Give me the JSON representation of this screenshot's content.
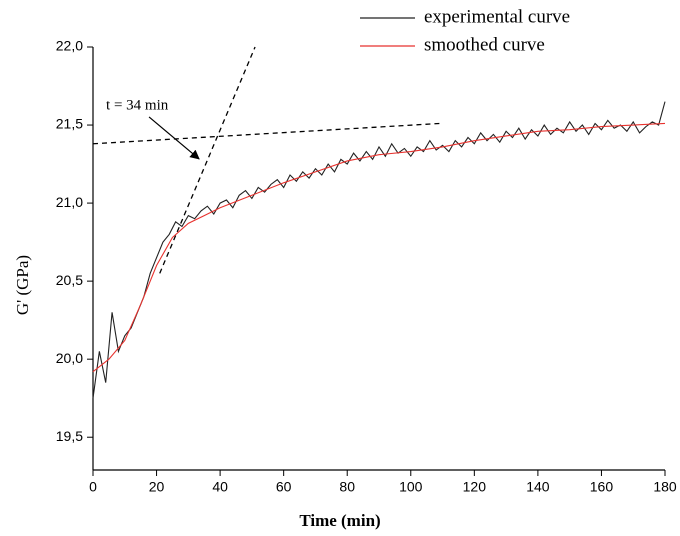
{
  "chart_data": {
    "type": "line",
    "xlabel": "Time (min)",
    "ylabel": "G' (GPa)",
    "xlim": [
      0,
      180
    ],
    "xticks": [
      0,
      20,
      40,
      60,
      80,
      100,
      120,
      140,
      160,
      180
    ],
    "ylim": [
      19.29,
      22.0
    ],
    "yticks": [
      {
        "value": 19.5,
        "label": "19,5"
      },
      {
        "value": 20.0,
        "label": "20,0"
      },
      {
        "value": 20.5,
        "label": "20,5"
      },
      {
        "value": 21.0,
        "label": "21,0"
      },
      {
        "value": 21.5,
        "label": "21,5"
      },
      {
        "value": 22.0,
        "label": "22,0"
      }
    ],
    "legend": "top-right",
    "series": [
      {
        "name": "experimental curve",
        "color": "#222222",
        "x": [
          0,
          2,
          4,
          6,
          8,
          10,
          12,
          14,
          16,
          18,
          20,
          22,
          24,
          26,
          28,
          30,
          32,
          34,
          36,
          38,
          40,
          42,
          44,
          46,
          48,
          50,
          52,
          54,
          56,
          58,
          60,
          62,
          64,
          66,
          68,
          70,
          72,
          74,
          76,
          78,
          80,
          82,
          84,
          86,
          88,
          90,
          92,
          94,
          96,
          98,
          100,
          102,
          104,
          106,
          108,
          110,
          112,
          114,
          116,
          118,
          120,
          122,
          124,
          126,
          128,
          130,
          132,
          134,
          136,
          138,
          140,
          142,
          144,
          146,
          148,
          150,
          152,
          154,
          156,
          158,
          160,
          162,
          164,
          166,
          168,
          170,
          172,
          174,
          176,
          178,
          180
        ],
        "values": [
          19.75,
          20.05,
          19.85,
          20.3,
          20.05,
          20.15,
          20.2,
          20.3,
          20.4,
          20.55,
          20.65,
          20.75,
          20.8,
          20.88,
          20.85,
          20.92,
          20.9,
          20.95,
          20.98,
          20.93,
          21.0,
          21.02,
          20.97,
          21.05,
          21.08,
          21.03,
          21.1,
          21.07,
          21.12,
          21.15,
          21.1,
          21.18,
          21.14,
          21.2,
          21.16,
          21.22,
          21.18,
          21.25,
          21.2,
          21.28,
          21.25,
          21.32,
          21.27,
          21.33,
          21.28,
          21.36,
          21.3,
          21.38,
          21.32,
          21.35,
          21.3,
          21.36,
          21.33,
          21.4,
          21.34,
          21.37,
          21.33,
          21.4,
          21.36,
          21.42,
          21.38,
          21.45,
          21.4,
          21.44,
          21.39,
          21.46,
          21.42,
          21.48,
          21.41,
          21.47,
          21.43,
          21.5,
          21.44,
          21.48,
          21.45,
          21.52,
          21.46,
          21.5,
          21.44,
          21.51,
          21.47,
          21.53,
          21.48,
          21.5,
          21.46,
          21.52,
          21.45,
          21.49,
          21.52,
          21.5,
          21.65
        ]
      },
      {
        "name": "smoothed curve",
        "color": "#e8322e",
        "x": [
          0,
          5,
          10,
          15,
          20,
          25,
          30,
          35,
          40,
          50,
          60,
          70,
          80,
          90,
          100,
          110,
          120,
          130,
          140,
          150,
          160,
          170,
          180
        ],
        "values": [
          19.92,
          20.0,
          20.12,
          20.35,
          20.6,
          20.78,
          20.87,
          20.92,
          20.97,
          21.05,
          21.13,
          21.2,
          21.27,
          21.31,
          21.33,
          21.36,
          21.4,
          21.43,
          21.46,
          21.47,
          21.49,
          21.5,
          21.51
        ]
      }
    ],
    "tangent_lines": [
      {
        "x": [
          0,
          109
        ],
        "y": [
          21.38,
          21.51
        ]
      },
      {
        "x": [
          21,
          51
        ],
        "y": [
          20.55,
          22.0
        ]
      }
    ],
    "annotation": {
      "text": "t = 34 min",
      "x": 34,
      "y": 21.27
    }
  }
}
